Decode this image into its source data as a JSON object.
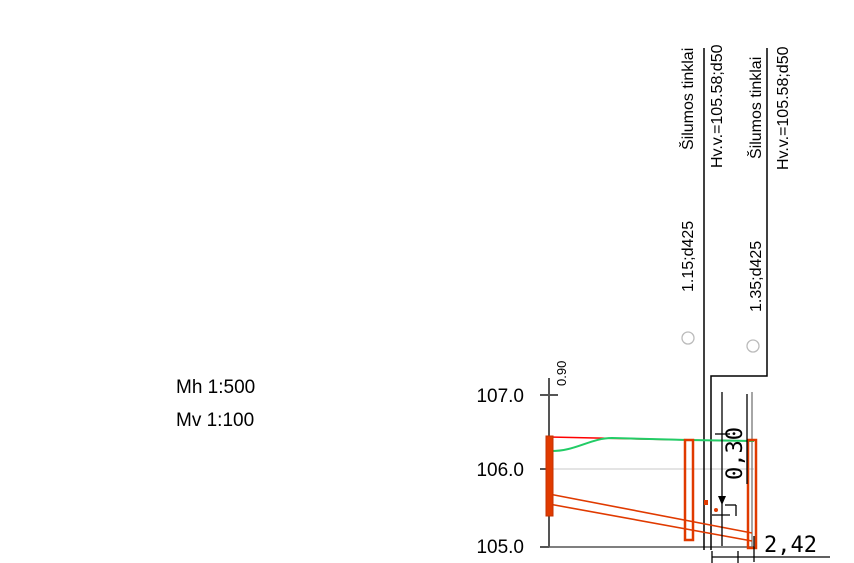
{
  "scales": {
    "horizontal": "Mh 1:500",
    "vertical": "Mv 1:100"
  },
  "axis": {
    "ticks": [
      "107.0",
      "106.0",
      "105.0"
    ],
    "top_mark": "0.90"
  },
  "utilities": [
    {
      "name": "Šilumos tinklai",
      "level": "Hv.v.=105.58;d50",
      "depth_diameter": "1.15;d425"
    },
    {
      "name": "Šilumos tinklai",
      "level": "Hv.v.=105.58;d50",
      "depth_diameter": "1.35;d425"
    }
  ],
  "dimensions": {
    "vertical": "0,30",
    "horizontal": "2,42"
  },
  "colors": {
    "ground_line": "#ff0000",
    "design_line": "#22cc66",
    "pipe": "#e03a00",
    "grid": "#c8c8c8",
    "ink": "#000000"
  }
}
